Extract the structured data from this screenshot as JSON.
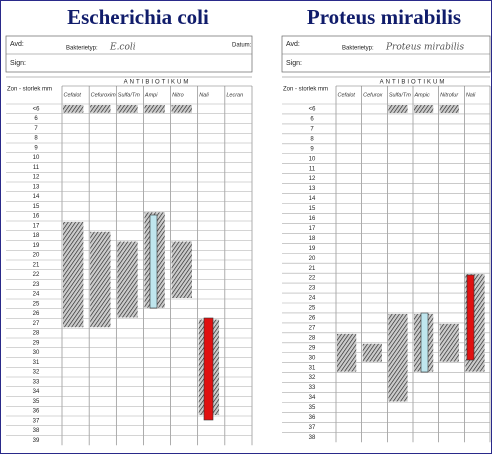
{
  "titles": [
    "Escherichia coli",
    "Proteus mirabilis"
  ],
  "forms": [
    {
      "avd": "Avd:",
      "sign": "Sign:",
      "datum": "Datum:",
      "bakterietyp": "Bakterietyp:",
      "handwritten": "E.coli",
      "zone_header": "Zon - storlek mm",
      "antibiotic_header": "ANTIBIOTIKUM",
      "columns": [
        "Cefalot",
        "Cefuroxim",
        "Sulfa/Tm",
        "Ampi",
        "Nitro",
        "Nali",
        "Lecran"
      ],
      "rows": [
        "<6",
        6,
        7,
        8,
        9,
        10,
        11,
        12,
        13,
        14,
        15,
        16,
        17,
        18,
        19,
        20,
        21,
        22,
        23,
        24,
        25,
        26,
        27,
        28,
        29,
        30,
        31,
        32,
        33,
        34,
        35,
        36,
        37,
        38,
        39
      ]
    },
    {
      "avd": "Avd:",
      "sign": "Sign:",
      "bakterietyp": "Bakterietyp:",
      "handwritten": "Proteus mirabilis",
      "zone_header": "Zon - storlek mm",
      "antibiotic_header": "ANTIBIOTIKUM",
      "columns": [
        "Cefalot",
        "Cefurox",
        "Sulfa/Tm",
        "Ampic",
        "Nitrofur",
        "Nali"
      ],
      "rows": [
        "<6",
        6,
        7,
        8,
        9,
        10,
        11,
        12,
        13,
        14,
        15,
        16,
        17,
        18,
        19,
        20,
        21,
        22,
        23,
        24,
        25,
        26,
        27,
        28,
        29,
        30,
        31,
        32,
        33,
        34,
        35,
        36,
        37,
        38
      ]
    }
  ]
}
